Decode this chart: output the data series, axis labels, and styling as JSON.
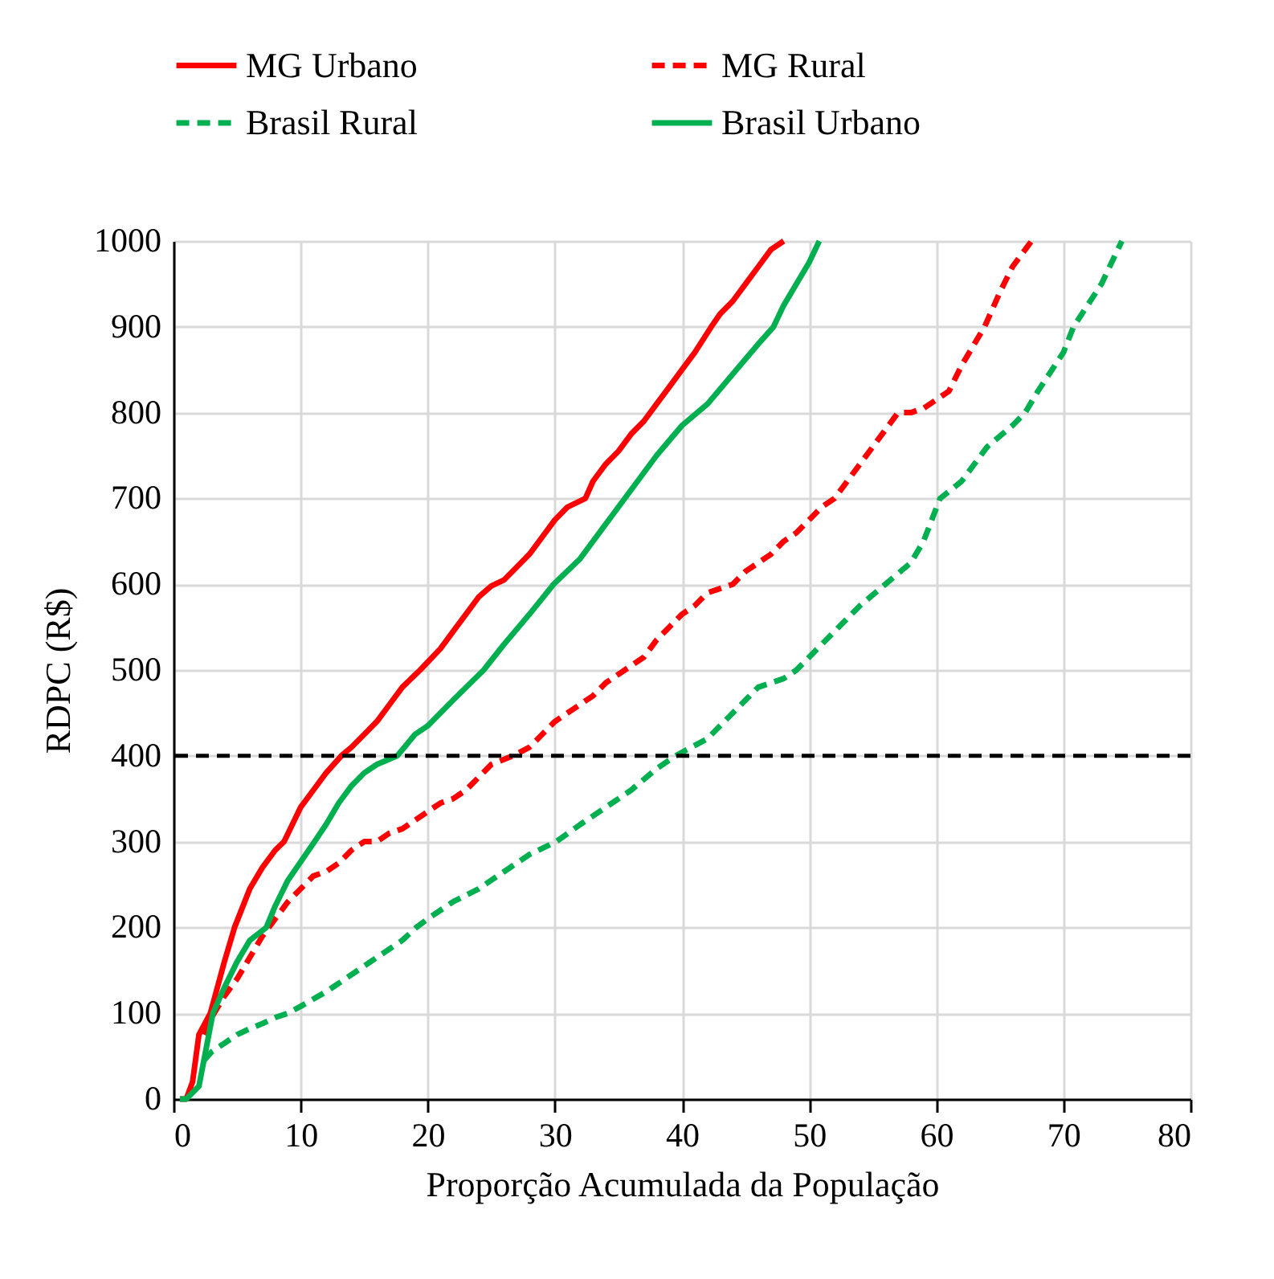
{
  "chart_data": {
    "type": "line",
    "xlabel": "Proporção Acumulada da População",
    "ylabel": "RDPC (R$)",
    "xlim": [
      0,
      80
    ],
    "xticks": [
      0,
      10,
      20,
      30,
      40,
      50,
      60,
      70,
      80
    ],
    "ylim": [
      0,
      1000
    ],
    "yticks": [
      0,
      100,
      200,
      300,
      400,
      500,
      600,
      700,
      800,
      900,
      1000
    ],
    "grid": true,
    "legend": "top",
    "marker": "none",
    "ref_lines": [
      {
        "axis": "y",
        "value": 400,
        "color": "#000000",
        "line_style": "dashed"
      }
    ],
    "series": [
      {
        "name": "MG Urbano",
        "color": "#ff0000",
        "line_style": "solid",
        "x": [
          0.5,
          1,
          1.5,
          2,
          2.9,
          4,
          4.8,
          6,
          7,
          8,
          8.7,
          10,
          11,
          12,
          13.2,
          14,
          15,
          16,
          17,
          18,
          19.4,
          21,
          22,
          23,
          24,
          25,
          26,
          27,
          28,
          29,
          30,
          31,
          32.4,
          33,
          34,
          35,
          36,
          37,
          38,
          39,
          40,
          41,
          42.3,
          43,
          44,
          45,
          46,
          47,
          48
        ],
        "values": [
          0,
          0,
          20,
          75,
          100,
          160,
          200,
          245,
          270,
          290,
          300,
          340,
          360,
          380,
          400,
          410,
          425,
          440,
          460,
          480,
          500,
          525,
          545,
          565,
          585,
          598,
          605,
          620,
          635,
          655,
          675,
          690,
          700,
          720,
          740,
          755,
          775,
          790,
          810,
          830,
          850,
          870,
          900,
          915,
          930,
          950,
          970,
          990,
          1000
        ]
      },
      {
        "name": "MG Rural",
        "color": "#ff0000",
        "line_style": "dashed",
        "x": [
          2.4,
          3,
          4,
          5,
          6,
          7,
          8,
          9,
          10,
          11,
          12,
          13,
          14,
          15,
          16,
          17,
          18,
          19,
          20,
          21,
          22,
          23,
          24,
          25,
          26.7,
          28,
          29,
          30,
          31,
          32,
          33,
          34,
          35,
          36,
          37,
          38,
          39,
          40,
          41,
          42,
          44,
          45,
          46,
          47,
          48,
          49,
          50,
          51,
          52,
          53,
          54,
          55,
          56,
          57,
          58,
          59,
          60,
          61,
          62,
          63.8,
          65,
          66,
          67.5
        ],
        "values": [
          75,
          95,
          120,
          140,
          165,
          190,
          210,
          230,
          245,
          260,
          265,
          275,
          290,
          300,
          300,
          310,
          315,
          325,
          335,
          345,
          350,
          360,
          375,
          390,
          400,
          410,
          425,
          440,
          450,
          460,
          470,
          485,
          495,
          505,
          515,
          535,
          550,
          565,
          575,
          590,
          600,
          615,
          625,
          635,
          650,
          660,
          675,
          690,
          700,
          720,
          740,
          760,
          780,
          800,
          800,
          805,
          815,
          825,
          855,
          900,
          940,
          970,
          1000
        ]
      },
      {
        "name": "Brasil Rural",
        "color": "#00b050",
        "line_style": "dashed",
        "x": [
          2.4,
          3,
          4,
          5,
          6,
          7,
          8,
          9,
          10,
          12,
          14,
          16,
          18,
          19.1,
          20,
          22,
          24,
          26,
          28,
          30.1,
          32,
          34,
          36,
          38,
          39.5,
          42,
          44,
          46,
          48,
          49,
          50,
          52,
          54,
          56,
          58,
          59,
          60.3,
          62,
          64,
          66,
          67,
          68,
          70,
          70.8,
          73,
          74.6
        ],
        "values": [
          45,
          55,
          65,
          75,
          82,
          88,
          95,
          100,
          108,
          125,
          145,
          165,
          185,
          200,
          210,
          230,
          245,
          265,
          285,
          300,
          320,
          340,
          360,
          385,
          400,
          420,
          450,
          480,
          490,
          500,
          515,
          545,
          575,
          600,
          625,
          650,
          700,
          720,
          760,
          785,
          800,
          825,
          870,
          900,
          950,
          1000
        ]
      },
      {
        "name": "Brasil Urbano",
        "color": "#00b050",
        "line_style": "solid",
        "x": [
          0.5,
          1,
          2,
          3.1,
          4,
          5,
          6,
          7.3,
          8,
          9,
          11.1,
          12,
          13,
          14,
          15,
          16,
          17.6,
          19,
          20,
          22,
          24.4,
          26,
          28,
          29.9,
          32,
          34,
          36,
          38,
          40,
          42,
          44,
          46,
          47.2,
          48,
          50,
          50.8
        ],
        "values": [
          0,
          0,
          15,
          100,
          130,
          160,
          185,
          200,
          225,
          255,
          300,
          320,
          345,
          365,
          380,
          390,
          400,
          425,
          435,
          465,
          500,
          530,
          565,
          600,
          630,
          670,
          710,
          750,
          785,
          810,
          845,
          880,
          900,
          925,
          975,
          1000
        ]
      }
    ]
  }
}
